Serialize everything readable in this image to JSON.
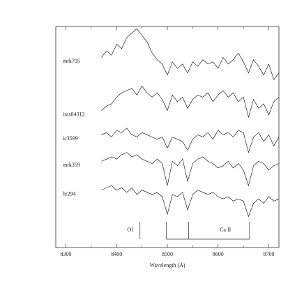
{
  "chart_data": {
    "type": "line",
    "xlabel": "Wavelength (Å)",
    "x": [
      8370,
      8380,
      8390,
      8400,
      8410,
      8420,
      8430,
      8440,
      8450,
      8460,
      8470,
      8480,
      8490,
      8500,
      8510,
      8520,
      8530,
      8540,
      8550,
      8560,
      8570,
      8580,
      8590,
      8600,
      8610,
      8620,
      8630,
      8640,
      8650,
      8660,
      8670,
      8680,
      8690,
      8700,
      8710,
      8720
    ],
    "series": [
      {
        "name": "mrk705",
        "color": "#000000",
        "values": [
          8.6,
          8.9,
          8.7,
          9.2,
          9.0,
          9.5,
          9.7,
          9.9,
          9.6,
          9.3,
          8.8,
          8.5,
          8.3,
          7.8,
          8.4,
          8.1,
          8.3,
          7.9,
          8.4,
          8.2,
          8.5,
          8.3,
          8.4,
          8.1,
          8.6,
          8.3,
          8.5,
          8.8,
          8.4,
          7.9,
          8.5,
          8.2,
          7.8,
          8.3,
          7.6,
          7.9
        ]
      },
      {
        "name": "iras04312",
        "color": "#000000",
        "values": [
          6.2,
          6.4,
          6.5,
          6.8,
          7.0,
          7.1,
          7.2,
          6.9,
          7.3,
          7.0,
          6.8,
          7.0,
          6.7,
          6.2,
          6.9,
          6.6,
          6.8,
          6.3,
          6.7,
          6.9,
          6.8,
          7.0,
          6.6,
          6.9,
          7.1,
          6.8,
          7.0,
          6.6,
          6.8,
          5.9,
          6.7,
          6.3,
          6.5,
          6.0,
          6.6,
          6.8
        ]
      },
      {
        "name": "ic3599",
        "color": "#000000",
        "values": [
          5.1,
          5.2,
          5.0,
          5.3,
          5.2,
          5.4,
          5.1,
          5.0,
          5.2,
          5.1,
          5.0,
          4.9,
          5.0,
          4.5,
          5.0,
          4.9,
          4.8,
          4.4,
          4.9,
          5.1,
          5.0,
          5.2,
          4.9,
          5.3,
          5.1,
          5.2,
          5.0,
          5.3,
          5.2,
          4.3,
          5.0,
          5.2,
          4.8,
          5.1,
          4.6,
          5.0
        ]
      },
      {
        "name": "mrk359",
        "color": "#000000",
        "values": [
          3.9,
          4.0,
          4.1,
          4.0,
          4.2,
          4.3,
          4.1,
          4.2,
          4.0,
          3.9,
          3.8,
          4.0,
          3.8,
          2.8,
          3.9,
          3.7,
          4.0,
          3.0,
          3.8,
          4.0,
          4.1,
          3.9,
          3.8,
          3.6,
          3.7,
          3.9,
          3.6,
          3.8,
          3.5,
          2.8,
          3.7,
          3.9,
          3.8,
          3.5,
          3.7,
          3.8
        ]
      },
      {
        "name": "hr294",
        "color": "#000000",
        "values": [
          2.6,
          2.7,
          2.8,
          2.6,
          2.7,
          2.5,
          2.7,
          2.4,
          2.6,
          2.5,
          2.4,
          2.5,
          2.3,
          1.5,
          2.4,
          2.3,
          2.5,
          1.7,
          2.4,
          2.6,
          2.5,
          2.4,
          2.5,
          2.3,
          2.2,
          2.3,
          2.1,
          2.2,
          2.1,
          1.4,
          2.0,
          2.2,
          2.0,
          2.3,
          2.1,
          2.2
        ]
      }
    ],
    "annotations": [
      {
        "text": "OI",
        "x": [
          8446
        ]
      },
      {
        "text": "Ca II",
        "x": [
          8498,
          8542,
          8662
        ]
      }
    ],
    "xlim": [
      8280,
      8720
    ],
    "xticks": [
      8300,
      8400,
      8500,
      8600,
      8700
    ],
    "xticks_minor": [
      8350,
      8450,
      8550,
      8650
    ],
    "ylim": [
      0,
      10
    ]
  }
}
